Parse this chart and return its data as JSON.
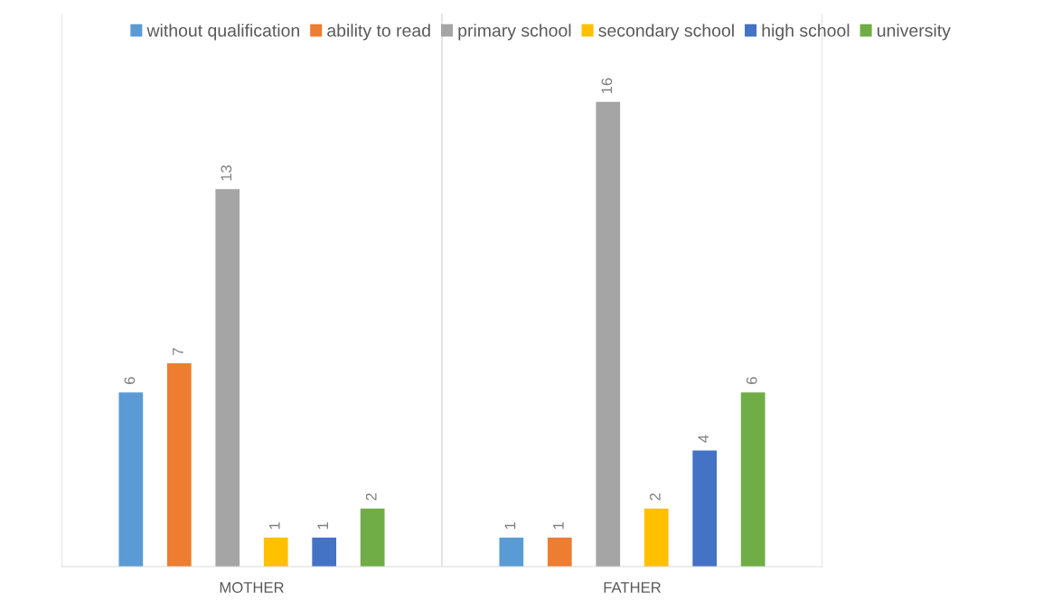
{
  "chart_data": {
    "type": "bar",
    "categories": [
      "MOTHER",
      "FATHER"
    ],
    "series": [
      {
        "name": "without qualification",
        "color": "#5b9bd5",
        "values": [
          6,
          1
        ]
      },
      {
        "name": "ability to read",
        "color": "#ed7d31",
        "values": [
          7,
          1
        ]
      },
      {
        "name": "primary school",
        "color": "#a5a5a5",
        "values": [
          13,
          16
        ]
      },
      {
        "name": "secondary school",
        "color": "#ffc000",
        "values": [
          1,
          2
        ]
      },
      {
        "name": "high school",
        "color": "#4472c4",
        "values": [
          1,
          4
        ]
      },
      {
        "name": "university",
        "color": "#70ad47",
        "values": [
          2,
          6
        ]
      }
    ],
    "relative": false,
    "data_labels": true,
    "legend": "top",
    "grid": "x"
  }
}
